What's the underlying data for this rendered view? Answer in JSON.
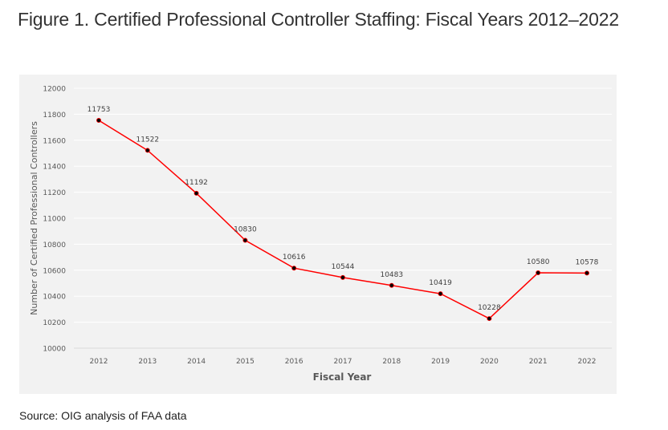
{
  "title": "Figure 1. Certified Professional Controller Staffing: Fiscal Years 2012–2022",
  "source": "Source: OIG analysis of FAA data",
  "colors": {
    "line": "#ff0000",
    "marker": "#000000",
    "background": "#f2f2f2",
    "grid": "#ffffff"
  },
  "chart_data": {
    "type": "line",
    "title": "",
    "xlabel": "Fiscal Year",
    "ylabel": "Number of Certified Professional Controllers",
    "categories": [
      "2012",
      "2013",
      "2014",
      "2015",
      "2016",
      "2017",
      "2018",
      "2019",
      "2020",
      "2021",
      "2022"
    ],
    "series": [
      {
        "values": [
          11753,
          11522,
          11192,
          10830,
          10616,
          10544,
          10483,
          10419,
          10228,
          10580,
          10578
        ]
      }
    ],
    "ylim": [
      10000,
      12000
    ],
    "yticks": [
      10000,
      10200,
      10400,
      10600,
      10800,
      11000,
      11200,
      11400,
      11600,
      11800,
      12000
    ],
    "grid": true,
    "data_labels": true
  }
}
